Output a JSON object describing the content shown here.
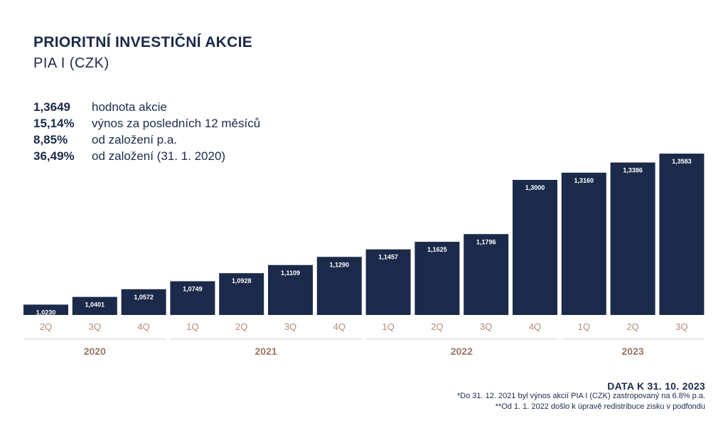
{
  "header": {
    "title": "PRIORITNÍ INVESTIČNÍ AKCIE",
    "subtitle": "PIA I (CZK)"
  },
  "stats": [
    {
      "value": "1,3649",
      "label": "hodnota akcie"
    },
    {
      "value": "15,14%",
      "label": "výnos za posledních 12 měsíců"
    },
    {
      "value": "8,85%",
      "label": "od založení p.a."
    },
    {
      "value": "36,49%",
      "label": "od založení (31. 1. 2020)"
    }
  ],
  "colors": {
    "bar": "#1b2a4a",
    "quarter_label": "#b08d7a",
    "year_label": "#9a7562",
    "separator": "#d9c9bf"
  },
  "chart_data": {
    "type": "bar",
    "categories": [
      "2Q",
      "3Q",
      "4Q",
      "1Q",
      "2Q",
      "3Q",
      "4Q",
      "1Q",
      "2Q",
      "3Q",
      "4Q",
      "1Q",
      "2Q",
      "3Q"
    ],
    "values": [
      1.023,
      1.0401,
      1.0572,
      1.0749,
      1.0928,
      1.1109,
      1.129,
      1.1457,
      1.1625,
      1.1796,
      1.3,
      1.316,
      1.3386,
      1.3583
    ],
    "value_labels": [
      "1,0230",
      "1,0401",
      "1,0572",
      "1,0749",
      "1,0928",
      "1,1109",
      "1,1290",
      "1,1457",
      "1,1625",
      "1,1796",
      "1,3000",
      "1,3160",
      "1,3386",
      "1,3583"
    ],
    "years": [
      {
        "label": "2020",
        "count": 3
      },
      {
        "label": "2021",
        "count": 4
      },
      {
        "label": "2022",
        "count": 4
      },
      {
        "label": "2023",
        "count": 3
      }
    ],
    "title": "",
    "xlabel": "",
    "ylabel": "",
    "ylim": [
      1.0,
      1.36
    ],
    "grid": false,
    "legend": "none"
  },
  "footer": {
    "date_note": "DATA K 31. 10. 2023",
    "note1": "*Do 31. 12. 2021 byl výnos akcií PIA I (CZK) zastropovaný na 6.8% p.a.",
    "note2": "**Od 1. 1. 2022 došlo k úpravě redistribuce zisku v podfondu"
  }
}
